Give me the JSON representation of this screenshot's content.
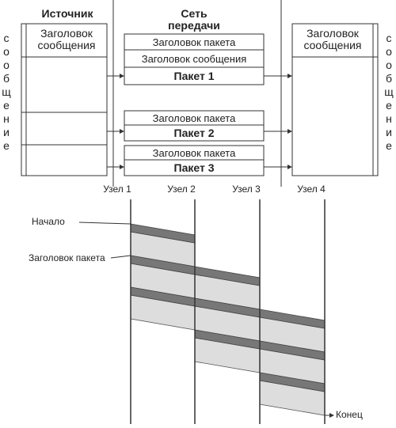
{
  "source": {
    "title": "Источник",
    "message_header": "Заголовок сообщения"
  },
  "network": {
    "title": "Сеть передачи",
    "packets": [
      {
        "packet_header": "Заголовок пакета",
        "message_header": "Заголовок сообщения",
        "label": "Пакет 1"
      },
      {
        "packet_header": "Заголовок пакета",
        "label": "Пакет 2"
      },
      {
        "packet_header": "Заголовок пакета",
        "label": "Пакет 3"
      }
    ]
  },
  "destination": {
    "message_header": "Заголовок сообщения"
  },
  "side_label_left": "сообщение",
  "side_label_right": "сообщение",
  "timeline": {
    "nodes": [
      "Узел 1",
      "Узел 2",
      "Узел 3",
      "Узел 4"
    ],
    "start_label": "Начало",
    "packet_header_label": "Заголовок пакета",
    "end_label": "Конец"
  }
}
